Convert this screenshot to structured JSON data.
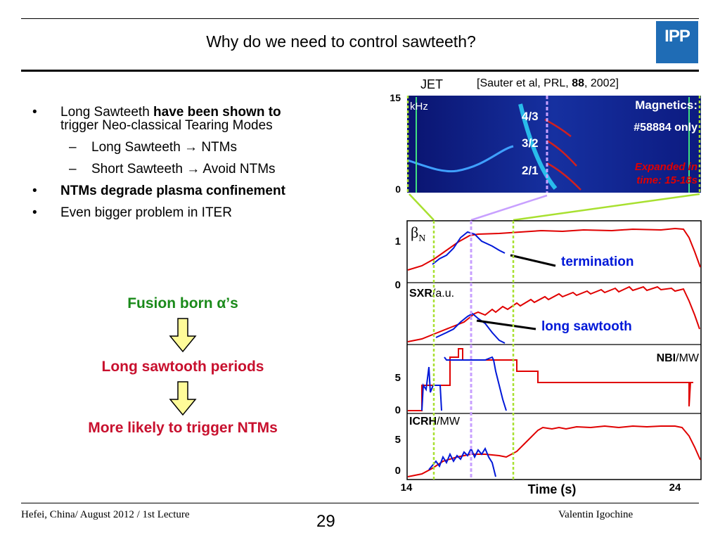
{
  "slide": {
    "title": "Why do we need to control sawteeth?",
    "logo_text": "IPP"
  },
  "bullets": {
    "b1_pre": "Long Sawteeth ",
    "b1_bold": "have been shown to",
    "b1_post": "trigger Neo-classical Tearing Modes",
    "s1": "Long Sawteeth → NTMs",
    "s2": "Short Sawteeth → Avoid NTMs",
    "b2": "NTMs degrade plasma confinement",
    "b3": "Even bigger problem in ITER",
    "bullet_mark": "•",
    "dash_mark": "–"
  },
  "flow": {
    "step1": "Fusion born α’s",
    "step2": "Long sawtooth periods",
    "step3": "More likely to trigger NTMs",
    "step1_color": "#1a8a1a",
    "step2_color": "#c8102e",
    "step3_color": "#c8102e",
    "arrow_color": "#fffb99"
  },
  "figure": {
    "jet": "JET",
    "ref_pre": "[Sauter et al, PRL, ",
    "ref_bold": "88",
    "ref_post": ", 2002]",
    "spec_top": "15",
    "spec_bottom": "0",
    "spec_unit": "kHz",
    "mode_43": "4/3",
    "mode_32": "3/2",
    "mode_21": "2/1",
    "magnetics_1": "Magnetics:",
    "magnetics_2": "#58884 only",
    "expanded_1": "Expanded  in",
    "expanded_2": "time: 15-18s",
    "beta_symbol": "β",
    "beta_sub": "N",
    "panel1_tick1": "1",
    "panel1_tick0": "0",
    "termination": "termination",
    "sxr_bold": "SXR",
    "sxr_unit": "/a.u.",
    "long_sawtooth": "long sawtooth",
    "nbi_bold": "NBI",
    "nbi_unit": "/MW",
    "panel3_tick5": "5",
    "panel3_tick0": "0",
    "icrh_bold": "ICRH",
    "icrh_unit": "/MW",
    "panel4_tick5": "5",
    "panel4_tick0": "0",
    "x_start": "14",
    "x_end": "24",
    "x_label": "Time (s)",
    "red_color": "#e00000",
    "blue_color": "#0018d8"
  },
  "footer": {
    "left": "Hefei, China/ August 2012 / 1st Lecture",
    "page": "29",
    "right": "Valentin Igochine"
  }
}
